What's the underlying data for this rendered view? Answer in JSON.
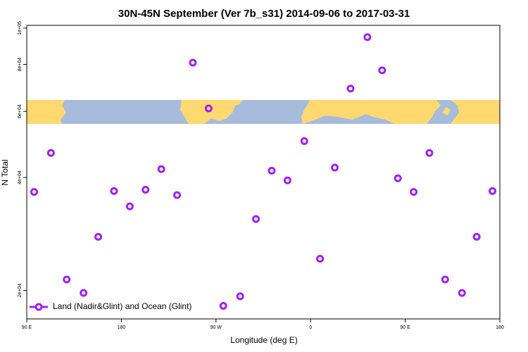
{
  "chart_data": {
    "type": "scatter",
    "title": "30N-45N September (Ver 7b_s31)   2014-09-06 to 2017-03-31",
    "x_label": "Longitude (deg E)",
    "y_label": "N Total",
    "log_y": true,
    "legend": "bottom-left",
    "xlim": [
      90,
      540
    ],
    "xticks": [
      {
        "value": 90,
        "label": "90 E"
      },
      {
        "value": 180,
        "label": "180"
      },
      {
        "value": 270,
        "label": "90 W"
      },
      {
        "value": 360,
        "label": "0"
      },
      {
        "value": 450,
        "label": "90 E"
      },
      {
        "value": 540,
        "label": "180"
      }
    ],
    "ylim": [
      16800,
      101700
    ],
    "yticks": [
      {
        "value": 20000,
        "label": "2e+04"
      },
      {
        "value": 40000,
        "label": "4e+04"
      },
      {
        "value": 60000,
        "label": "6e+04"
      },
      {
        "value": 80000,
        "label": "8e+04"
      },
      {
        "value": 100000,
        "label": "1e+05"
      }
    ],
    "series": [
      {
        "name": "Land (Nadir&Glint) and Ocean (Glint)",
        "color": "#a020f0",
        "x": [
          97,
          113,
          128,
          144,
          158,
          173,
          188,
          203,
          218,
          233,
          248,
          263,
          277,
          293,
          308,
          323,
          338,
          354,
          369,
          383,
          398,
          414,
          428,
          443,
          458,
          473,
          488,
          504,
          518,
          533
        ],
        "values": [
          36600,
          46500,
          21400,
          19700,
          27800,
          36800,
          33500,
          37100,
          42100,
          35900,
          80900,
          61100,
          18200,
          19300,
          31000,
          41700,
          39300,
          50000,
          24300,
          42500,
          69000,
          94600,
          77200,
          39800,
          36600,
          46500,
          21400,
          19700,
          27800,
          36800
        ]
      }
    ]
  }
}
